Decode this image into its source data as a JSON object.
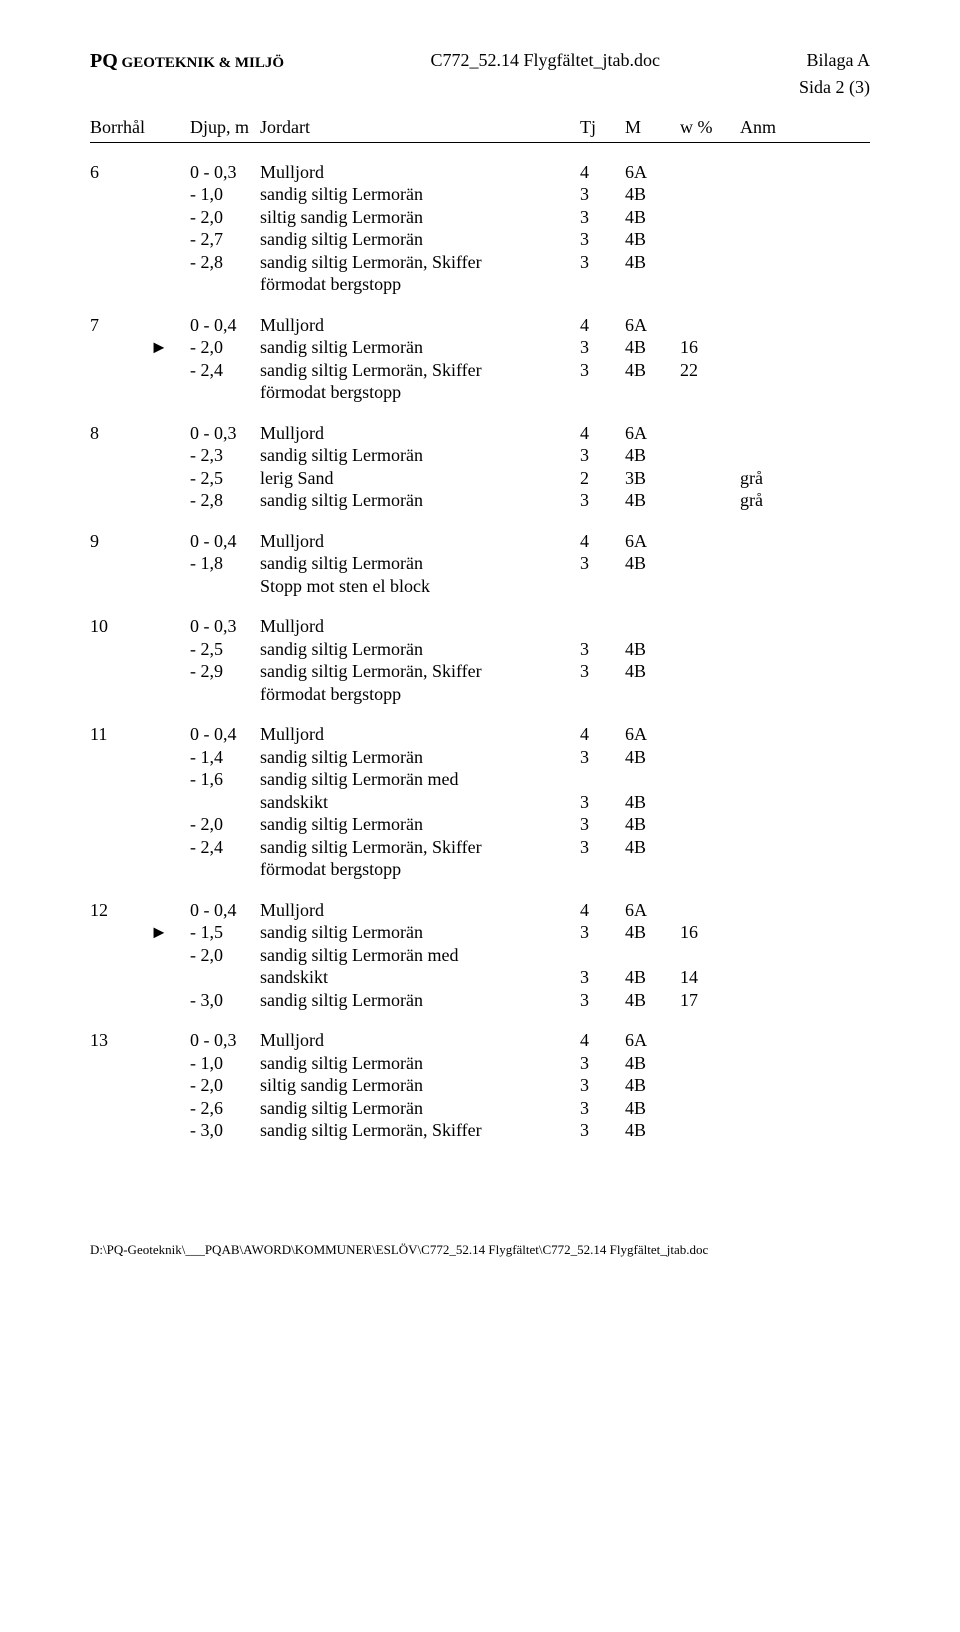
{
  "header": {
    "left_bold": "PQ",
    "left_small": " GEOTEKNIK & MILJÖ",
    "center": "C772_52.14 Flygfältet_jtab.doc",
    "right": "Bilaga A",
    "sub_right": "Sida 2 (3)"
  },
  "columns": {
    "borrhal": "Borrhål",
    "djup": "Djup, m",
    "jordart": "Jordart",
    "tj": "Tj",
    "m": "M",
    "w": "w %",
    "anm": "Anm"
  },
  "groups": [
    {
      "bh": "6",
      "rows": [
        {
          "mark": "",
          "djup": "0 - 0,3",
          "jord": "Mulljord",
          "tj": "4",
          "m": "6A",
          "w": "",
          "anm": ""
        },
        {
          "mark": "",
          "djup": "- 1,0",
          "jord": "sandig siltig Lermorän",
          "tj": "3",
          "m": "4B",
          "w": "",
          "anm": ""
        },
        {
          "mark": "",
          "djup": "- 2,0",
          "jord": "siltig sandig Lermorän",
          "tj": "3",
          "m": "4B",
          "w": "",
          "anm": ""
        },
        {
          "mark": "",
          "djup": "- 2,7",
          "jord": "sandig siltig Lermorän",
          "tj": "3",
          "m": "4B",
          "w": "",
          "anm": ""
        },
        {
          "mark": "",
          "djup": "- 2,8",
          "jord": "sandig siltig Lermorän, Skiffer",
          "tj": "3",
          "m": "4B",
          "w": "",
          "anm": ""
        },
        {
          "mark": "",
          "djup": "",
          "jord": "förmodat bergstopp",
          "tj": "",
          "m": "",
          "w": "",
          "anm": ""
        }
      ]
    },
    {
      "bh": "7",
      "rows": [
        {
          "mark": "",
          "djup": "0 - 0,4",
          "jord": "Mulljord",
          "tj": "4",
          "m": "6A",
          "w": "",
          "anm": ""
        },
        {
          "mark": "►",
          "djup": "- 2,0",
          "jord": "sandig siltig Lermorän",
          "tj": "3",
          "m": "4B",
          "w": "16",
          "anm": ""
        },
        {
          "mark": "",
          "djup": "- 2,4",
          "jord": "sandig siltig Lermorän, Skiffer",
          "tj": "3",
          "m": "4B",
          "w": "22",
          "anm": ""
        },
        {
          "mark": "",
          "djup": "",
          "jord": "förmodat bergstopp",
          "tj": "",
          "m": "",
          "w": "",
          "anm": ""
        }
      ]
    },
    {
      "bh": "8",
      "rows": [
        {
          "mark": "",
          "djup": "0 - 0,3",
          "jord": "Mulljord",
          "tj": "4",
          "m": "6A",
          "w": "",
          "anm": ""
        },
        {
          "mark": "",
          "djup": "- 2,3",
          "jord": "sandig siltig Lermorän",
          "tj": "3",
          "m": "4B",
          "w": "",
          "anm": ""
        },
        {
          "mark": "",
          "djup": "- 2,5",
          "jord": "lerig Sand",
          "tj": "2",
          "m": "3B",
          "w": "",
          "anm": "grå"
        },
        {
          "mark": "",
          "djup": "- 2,8",
          "jord": "sandig siltig Lermorän",
          "tj": "3",
          "m": "4B",
          "w": "",
          "anm": "grå"
        }
      ]
    },
    {
      "bh": "9",
      "rows": [
        {
          "mark": "",
          "djup": "0 - 0,4",
          "jord": "Mulljord",
          "tj": "4",
          "m": "6A",
          "w": "",
          "anm": ""
        },
        {
          "mark": "",
          "djup": "- 1,8",
          "jord": "sandig siltig Lermorän",
          "tj": "3",
          "m": "4B",
          "w": "",
          "anm": ""
        },
        {
          "mark": "",
          "djup": "",
          "jord": "Stopp mot sten el block",
          "tj": "",
          "m": "",
          "w": "",
          "anm": ""
        }
      ]
    },
    {
      "bh": "10",
      "rows": [
        {
          "mark": "",
          "djup": "0 - 0,3",
          "jord": "Mulljord",
          "tj": "",
          "m": "",
          "w": "",
          "anm": ""
        },
        {
          "mark": "",
          "djup": "- 2,5",
          "jord": "sandig siltig Lermorän",
          "tj": "3",
          "m": "4B",
          "w": "",
          "anm": ""
        },
        {
          "mark": "",
          "djup": "- 2,9",
          "jord": "sandig siltig Lermorän, Skiffer",
          "tj": "3",
          "m": "4B",
          "w": "",
          "anm": ""
        },
        {
          "mark": "",
          "djup": "",
          "jord": "förmodat bergstopp",
          "tj": "",
          "m": "",
          "w": "",
          "anm": ""
        }
      ]
    },
    {
      "bh": "11",
      "rows": [
        {
          "mark": "",
          "djup": "0 - 0,4",
          "jord": "Mulljord",
          "tj": "4",
          "m": "6A",
          "w": "",
          "anm": ""
        },
        {
          "mark": "",
          "djup": "- 1,4",
          "jord": "sandig siltig Lermorän",
          "tj": "3",
          "m": "4B",
          "w": "",
          "anm": ""
        },
        {
          "mark": "",
          "djup": "- 1,6",
          "jord": "sandig siltig Lermorän med",
          "tj": "",
          "m": "",
          "w": "",
          "anm": ""
        },
        {
          "mark": "",
          "djup": "",
          "jord": "sandskikt",
          "tj": "3",
          "m": "4B",
          "w": "",
          "anm": ""
        },
        {
          "mark": "",
          "djup": "- 2,0",
          "jord": "sandig siltig Lermorän",
          "tj": "3",
          "m": "4B",
          "w": "",
          "anm": ""
        },
        {
          "mark": "",
          "djup": "- 2,4",
          "jord": "sandig siltig Lermorän, Skiffer",
          "tj": "3",
          "m": "4B",
          "w": "",
          "anm": ""
        },
        {
          "mark": "",
          "djup": "",
          "jord": "förmodat bergstopp",
          "tj": "",
          "m": "",
          "w": "",
          "anm": ""
        }
      ]
    },
    {
      "bh": "12",
      "rows": [
        {
          "mark": "",
          "djup": "0 - 0,4",
          "jord": "Mulljord",
          "tj": "4",
          "m": "6A",
          "w": "",
          "anm": ""
        },
        {
          "mark": "►",
          "djup": "- 1,5",
          "jord": "sandig siltig Lermorän",
          "tj": "3",
          "m": "4B",
          "w": "16",
          "anm": ""
        },
        {
          "mark": "",
          "djup": "- 2,0",
          "jord": "sandig siltig Lermorän med",
          "tj": "",
          "m": "",
          "w": "",
          "anm": ""
        },
        {
          "mark": "",
          "djup": "",
          "jord": "sandskikt",
          "tj": "3",
          "m": "4B",
          "w": "14",
          "anm": ""
        },
        {
          "mark": "",
          "djup": "- 3,0",
          "jord": "sandig siltig Lermorän",
          "tj": "3",
          "m": "4B",
          "w": "17",
          "anm": ""
        }
      ]
    },
    {
      "bh": "13",
      "rows": [
        {
          "mark": "",
          "djup": "0 - 0,3",
          "jord": "Mulljord",
          "tj": "4",
          "m": "6A",
          "w": "",
          "anm": ""
        },
        {
          "mark": "",
          "djup": "- 1,0",
          "jord": "sandig siltig Lermorän",
          "tj": "3",
          "m": "4B",
          "w": "",
          "anm": ""
        },
        {
          "mark": "",
          "djup": "- 2,0",
          "jord": "siltig sandig Lermorän",
          "tj": "3",
          "m": "4B",
          "w": "",
          "anm": ""
        },
        {
          "mark": "",
          "djup": "- 2,6",
          "jord": "sandig siltig Lermorän",
          "tj": "3",
          "m": "4B",
          "w": "",
          "anm": ""
        },
        {
          "mark": "",
          "djup": "- 3,0",
          "jord": "sandig siltig Lermorän, Skiffer",
          "tj": "3",
          "m": "4B",
          "w": "",
          "anm": ""
        }
      ]
    }
  ],
  "footer": "D:\\PQ-Geoteknik\\___PQAB\\AWORD\\KOMMUNER\\ESLÖV\\C772_52.14 Flygfältet\\C772_52.14 Flygfältet_jtab.doc"
}
